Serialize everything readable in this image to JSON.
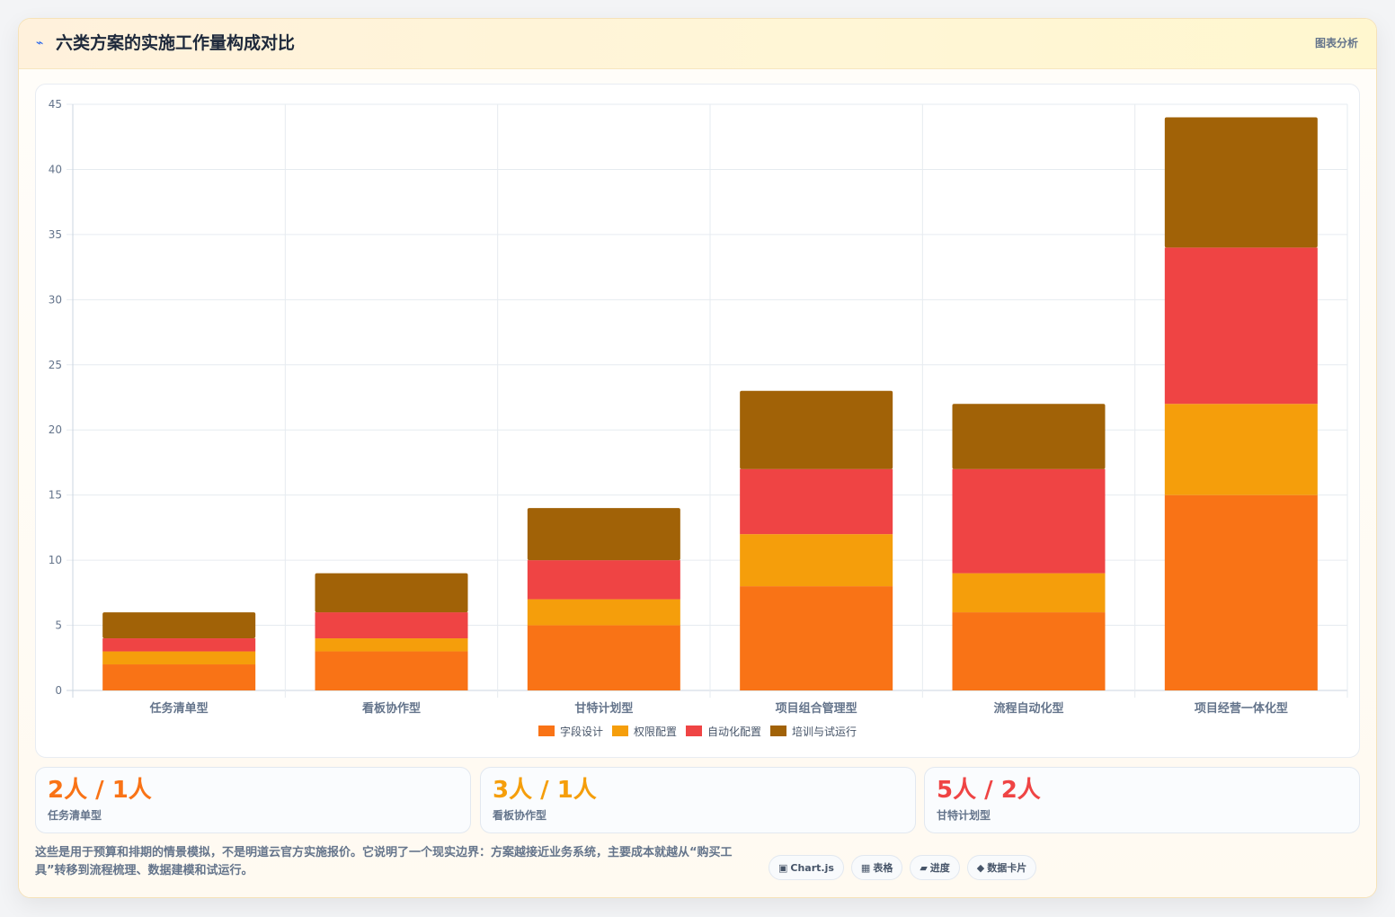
{
  "header": {
    "icon": "lightning-icon",
    "title": "六类方案的实施工作量构成对比",
    "tag": "图表分析"
  },
  "chart_data": {
    "type": "bar",
    "stacked": true,
    "categories": [
      "任务清单型",
      "看板协作型",
      "甘特计划型",
      "项目组合管理型",
      "流程自动化型",
      "项目经营一体化型"
    ],
    "series": [
      {
        "name": "字段设计",
        "color": "#f97316",
        "values": [
          2,
          3,
          5,
          8,
          6,
          15
        ]
      },
      {
        "name": "权限配置",
        "color": "#f59e0b",
        "values": [
          1,
          1,
          2,
          4,
          3,
          7
        ]
      },
      {
        "name": "自动化配置",
        "color": "#ef4444",
        "values": [
          1,
          2,
          3,
          5,
          8,
          12
        ]
      },
      {
        "name": "培训与试运行",
        "color": "#a16207",
        "values": [
          2,
          3,
          4,
          6,
          5,
          10
        ]
      }
    ],
    "ylim": [
      0,
      45
    ],
    "yticks": [
      0,
      5,
      10,
      15,
      20,
      25,
      30,
      35,
      40,
      45
    ],
    "grid": true,
    "legend": "bottom",
    "title": "",
    "xlabel": "",
    "ylabel": ""
  },
  "stats": [
    {
      "value": "2人 / 1人",
      "label": "任务清单型",
      "color": "#f97316"
    },
    {
      "value": "3人 / 1人",
      "label": "看板协作型",
      "color": "#f59e0b"
    },
    {
      "value": "5人 / 2人",
      "label": "甘特计划型",
      "color": "#ef4444"
    }
  ],
  "note": "这些是用于预算和排期的情景模拟，不是明道云官方实施报价。它说明了一个现实边界：方案越接近业务系统，主要成本就越从“购买工具”转移到流程梳理、数据建模和试运行。",
  "badges": [
    {
      "icon": "▣",
      "label": "Chart.js"
    },
    {
      "icon": "▦",
      "label": "表格"
    },
    {
      "icon": "▰",
      "label": "进度"
    },
    {
      "icon": "◆",
      "label": "数据卡片"
    }
  ]
}
